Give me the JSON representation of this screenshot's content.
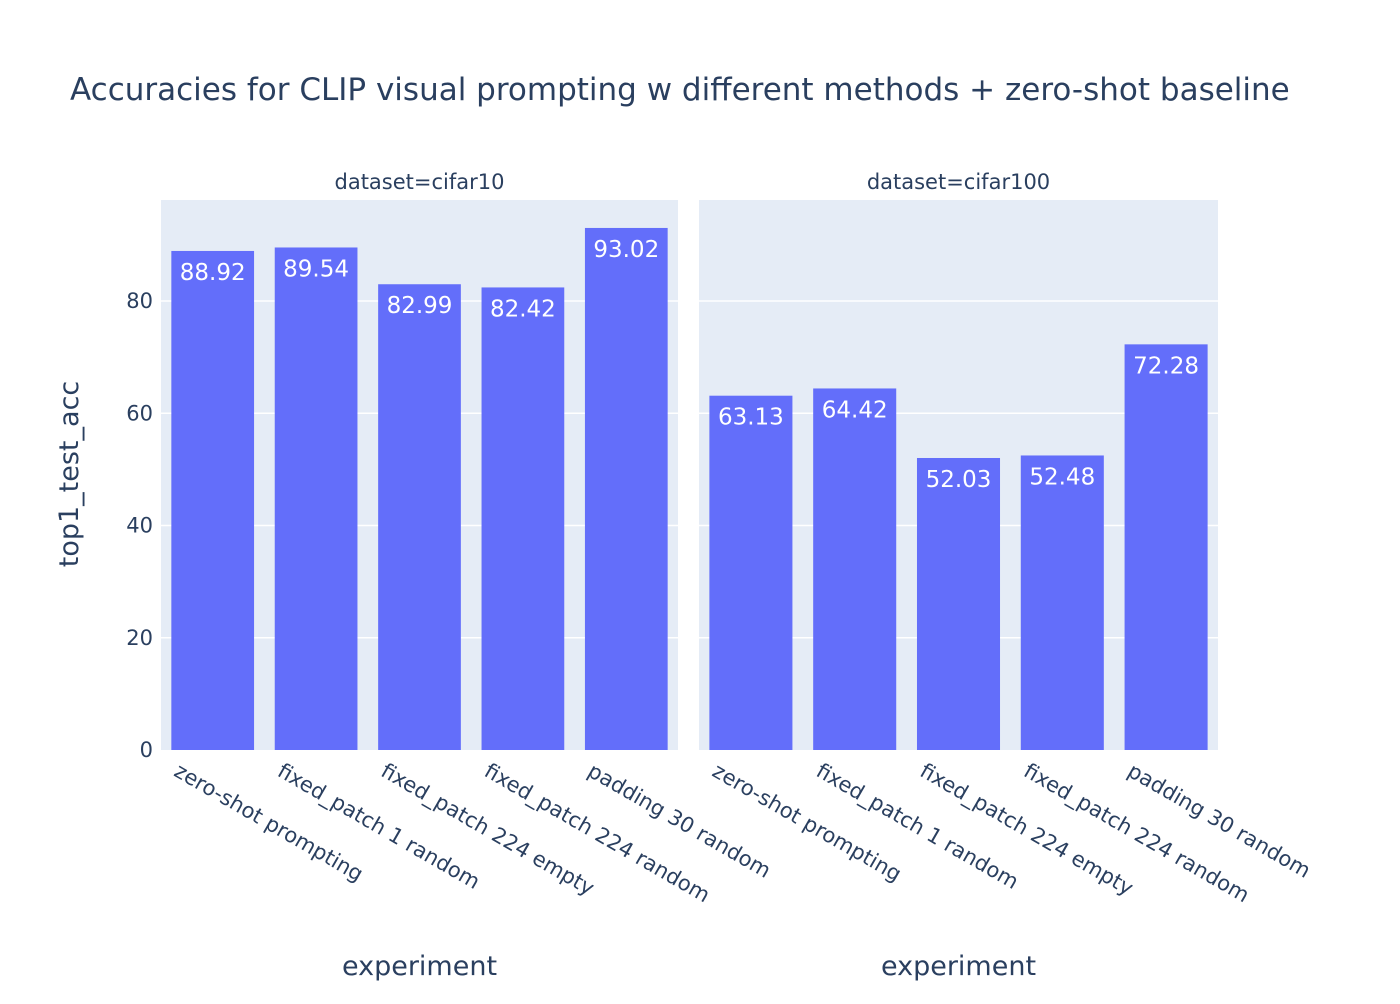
{
  "chart_data": {
    "type": "bar",
    "title": "Accuracies for CLIP visual prompting w different methods + zero-shot baseline",
    "ylabel": "top1_test_acc",
    "xlabel": "experiment",
    "ylim": [
      0,
      98
    ],
    "y_ticks": [
      0,
      20,
      40,
      60,
      80
    ],
    "y_tick_labels": [
      "0",
      "20",
      "40",
      "60",
      "80"
    ],
    "grid": true,
    "bar_color": "#636efa",
    "plot_bg": "#e5ecf6",
    "categories": [
      "zero-shot prompting",
      "fixed_patch 1 random",
      "fixed_patch 224 empty",
      "fixed_patch 224 random",
      "padding 30 random"
    ],
    "facets": [
      {
        "title": "dataset=cifar10",
        "values": [
          88.92,
          89.54,
          82.99,
          82.42,
          93.02
        ],
        "value_labels": [
          "88.92",
          "89.54",
          "82.99",
          "82.42",
          "93.02"
        ]
      },
      {
        "title": "dataset=cifar100",
        "values": [
          63.13,
          64.42,
          52.03,
          52.48,
          72.28
        ],
        "value_labels": [
          "63.13",
          "64.42",
          "52.03",
          "52.48",
          "72.28"
        ]
      }
    ]
  }
}
